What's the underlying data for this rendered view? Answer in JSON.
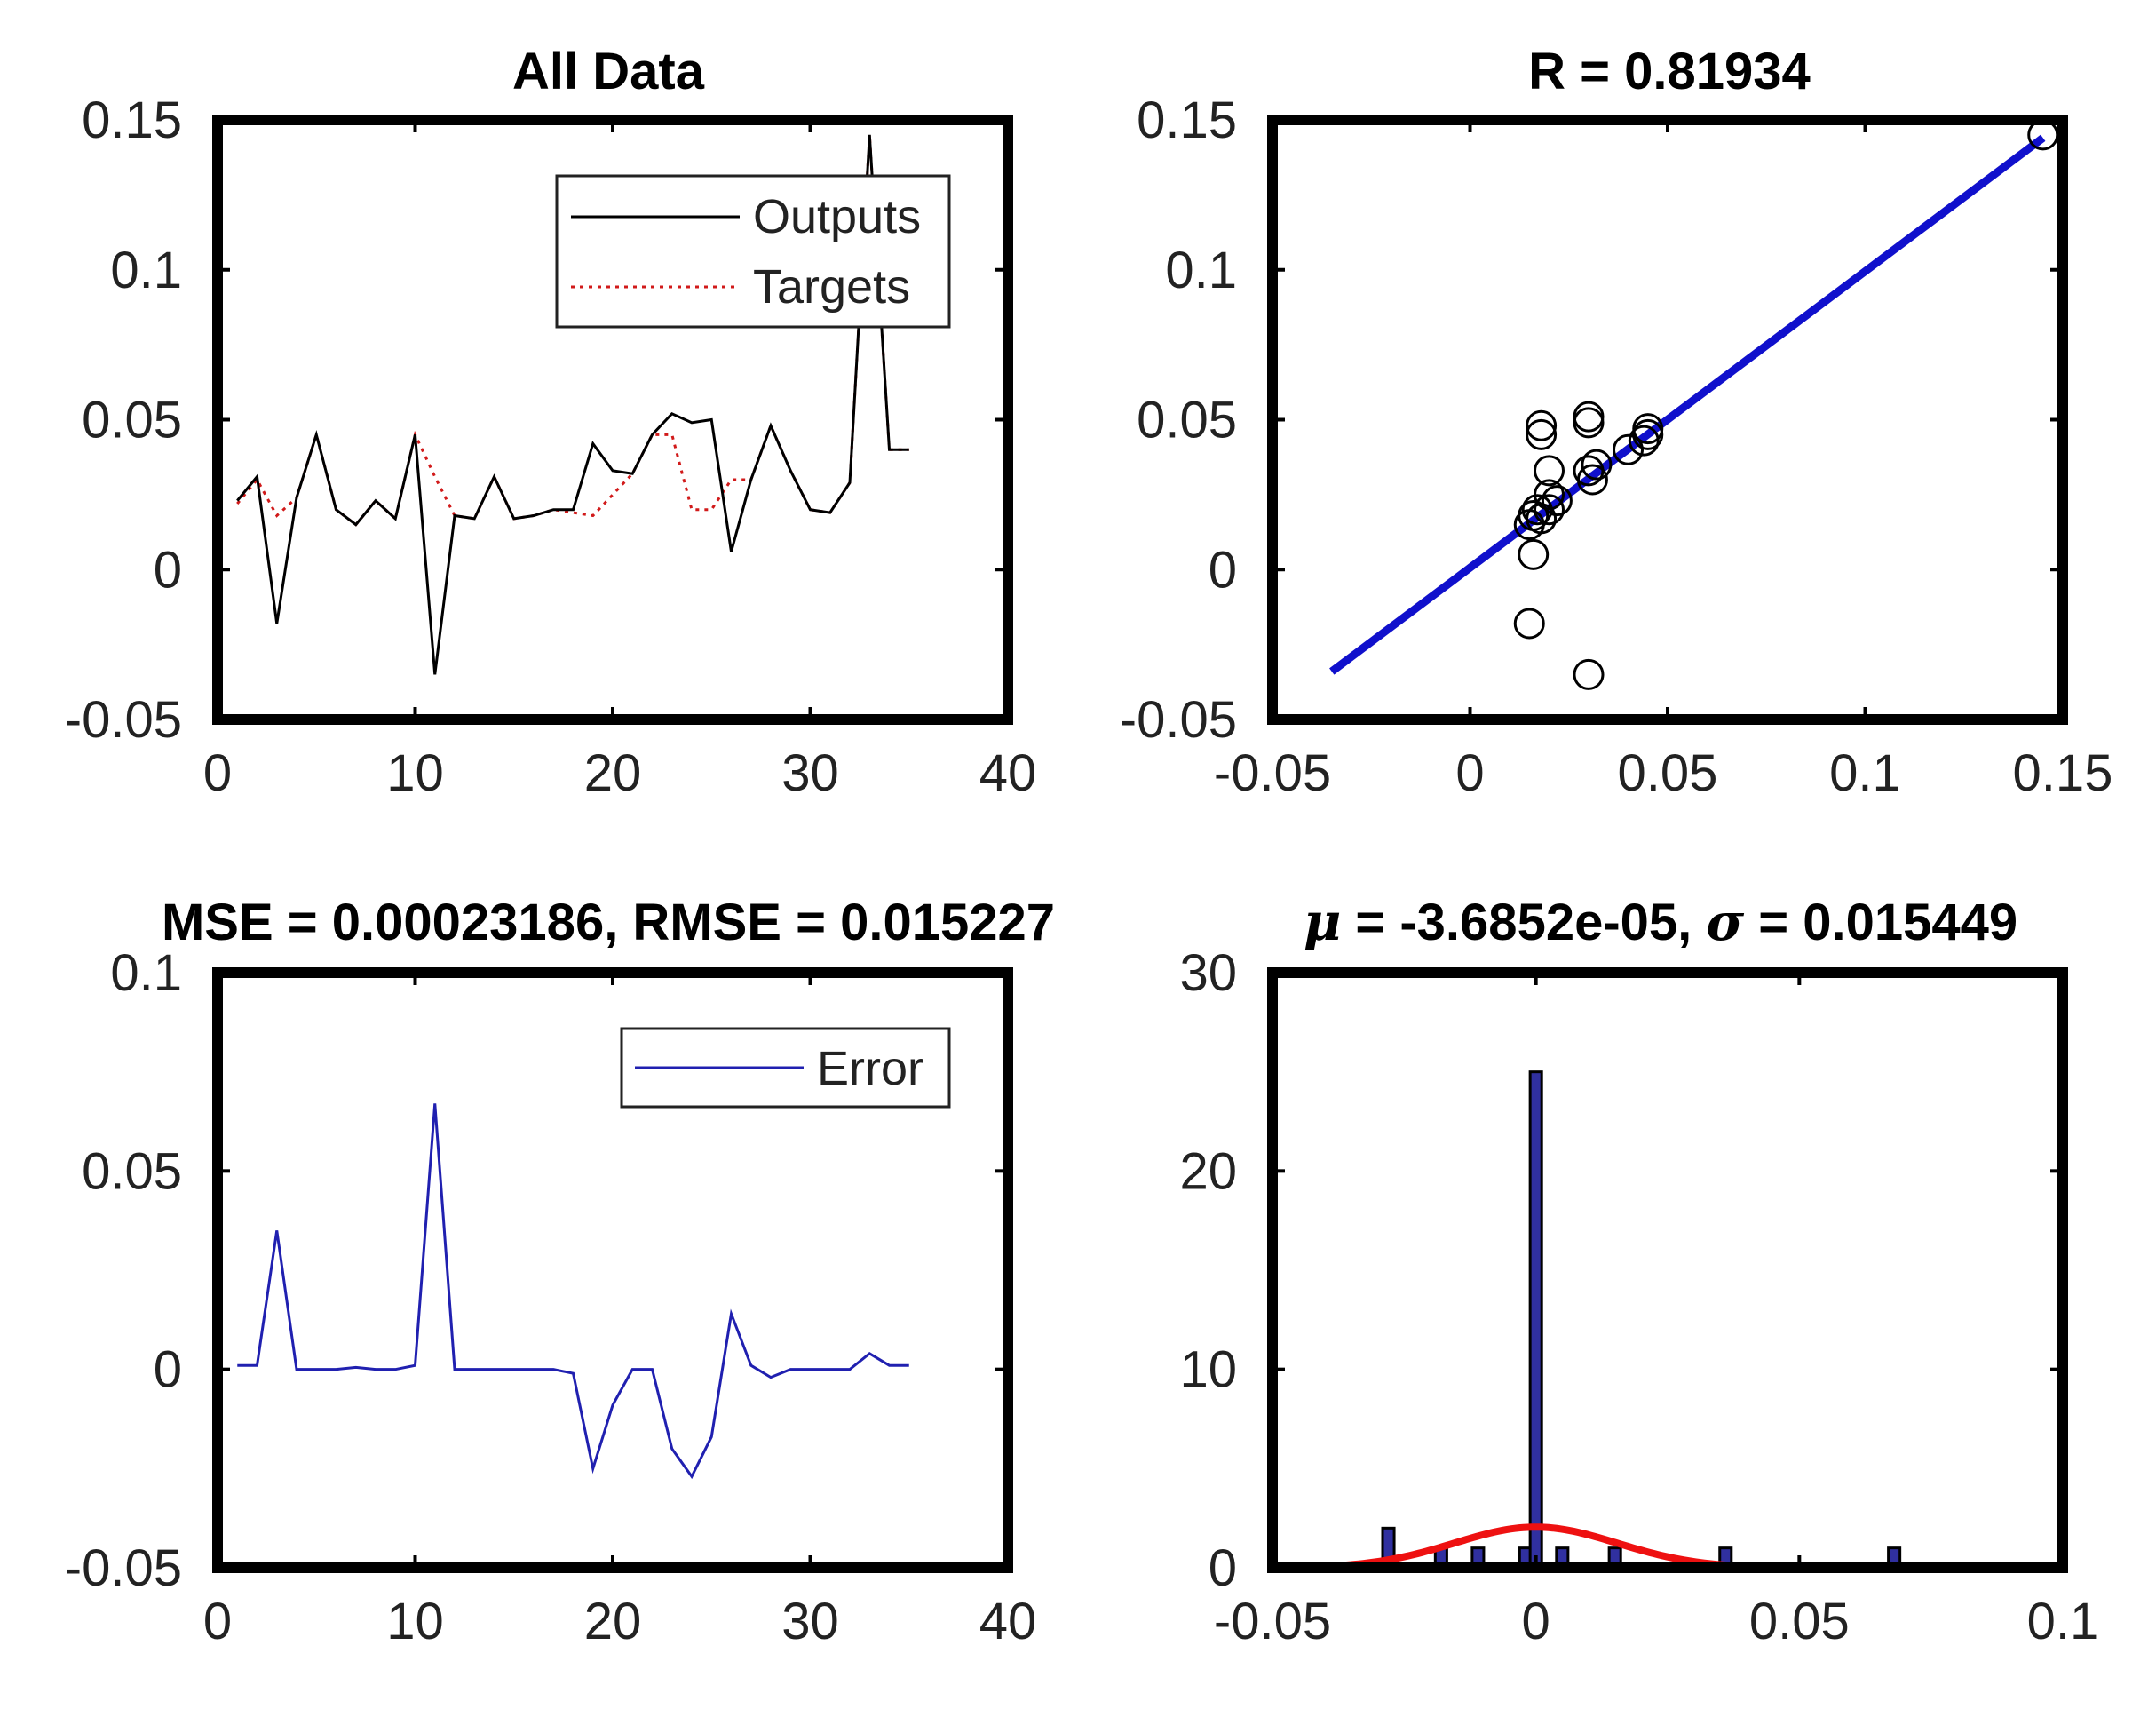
{
  "chart_data": [
    {
      "id": "all_data",
      "type": "line",
      "title": "All Data",
      "xlim": [
        0,
        40
      ],
      "ylim": [
        -0.05,
        0.15
      ],
      "xticks": [
        0,
        10,
        20,
        30,
        40
      ],
      "xtick_labels": [
        "0",
        "10",
        "20",
        "30",
        "40"
      ],
      "yticks": [
        -0.05,
        0,
        0.05,
        0.1,
        0.15
      ],
      "ytick_labels": [
        "-0.05",
        "0",
        "0.05",
        "0.1",
        "0.15"
      ],
      "legend": {
        "position": "top-right",
        "entries": [
          "Outputs",
          "Targets"
        ]
      },
      "series": [
        {
          "name": "Outputs",
          "color": "#000000",
          "style": "solid",
          "x": [
            1,
            2,
            3,
            4,
            5,
            6,
            7,
            8,
            9,
            10,
            11,
            12,
            13,
            14,
            15,
            16,
            17,
            18,
            19,
            20,
            21,
            22,
            23,
            24,
            25,
            26,
            27,
            28,
            29,
            30,
            31,
            32,
            33,
            34,
            35
          ],
          "y": [
            0.023,
            0.031,
            -0.018,
            0.024,
            0.045,
            0.02,
            0.015,
            0.023,
            0.017,
            0.045,
            -0.035,
            0.018,
            0.017,
            0.031,
            0.017,
            0.018,
            0.02,
            0.02,
            0.042,
            0.033,
            0.032,
            0.045,
            0.052,
            0.049,
            0.05,
            0.006,
            0.03,
            0.048,
            0.033,
            0.02,
            0.019,
            0.029,
            0.145,
            0.04,
            0.04
          ]
        },
        {
          "name": "Targets",
          "color": "#d11a1a",
          "style": "dotted",
          "x": [
            1,
            2,
            3,
            4,
            5,
            6,
            7,
            8,
            9,
            10,
            11,
            12,
            13,
            14,
            15,
            16,
            17,
            18,
            19,
            20,
            21,
            22,
            23,
            24,
            25,
            26,
            27,
            28,
            29,
            30,
            31,
            32,
            33,
            34,
            35
          ],
          "y": [
            0.022,
            0.03,
            0.018,
            0.024,
            0.045,
            0.02,
            0.015,
            0.023,
            0.017,
            0.045,
            0.031,
            0.018,
            0.017,
            0.031,
            0.017,
            0.018,
            0.02,
            0.019,
            0.018,
            0.025,
            0.032,
            0.045,
            0.045,
            0.02,
            0.02,
            0.03,
            0.03,
            0.048,
            0.033,
            0.02,
            0.019,
            0.029,
            0.145,
            0.04,
            0.04
          ]
        }
      ]
    },
    {
      "id": "regression",
      "type": "scatter",
      "title": "R = 0.81934",
      "xlim": [
        -0.05,
        0.15
      ],
      "ylim": [
        -0.05,
        0.15
      ],
      "xticks": [
        -0.05,
        0,
        0.05,
        0.1,
        0.15
      ],
      "xtick_labels": [
        "-0.05",
        "0",
        "0.05",
        "0.1",
        "0.15"
      ],
      "yticks": [
        -0.05,
        0,
        0.05,
        0.1,
        0.15
      ],
      "ytick_labels": [
        "-0.05",
        "0",
        "0.05",
        "0.1",
        "0.15"
      ],
      "points": {
        "x": [
          0.018,
          0.018,
          0.03,
          0.03,
          0.045,
          0.045,
          0.02,
          0.03,
          0.04,
          0.031,
          0.032,
          0.02,
          0.022,
          0.015,
          0.016,
          0.017,
          0.018,
          0.016,
          0.015,
          0.03,
          0.145,
          0.02,
          0.044
        ],
        "y": [
          0.048,
          0.045,
          0.051,
          0.049,
          0.047,
          0.045,
          0.033,
          0.033,
          0.04,
          0.03,
          0.035,
          0.025,
          0.023,
          0.015,
          0.018,
          0.02,
          0.017,
          0.005,
          -0.018,
          -0.035,
          0.145,
          0.02,
          0.043
        ]
      },
      "fit_line": {
        "x": [
          -0.035,
          0.145
        ],
        "y": [
          -0.034,
          0.144
        ],
        "color": "#1010cc"
      }
    },
    {
      "id": "error",
      "type": "line",
      "title": "MSE = 0.00023186, RMSE = 0.015227",
      "xlim": [
        0,
        40
      ],
      "ylim": [
        -0.05,
        0.1
      ],
      "xticks": [
        0,
        10,
        20,
        30,
        40
      ],
      "xtick_labels": [
        "0",
        "10",
        "20",
        "30",
        "40"
      ],
      "yticks": [
        -0.05,
        0,
        0.05,
        0.1
      ],
      "ytick_labels": [
        "-0.05",
        "0",
        "0.05",
        "0.1"
      ],
      "legend": {
        "position": "top-right",
        "entries": [
          "Error"
        ]
      },
      "series": [
        {
          "name": "Error",
          "color": "#2020b0",
          "style": "solid",
          "x": [
            1,
            2,
            3,
            4,
            5,
            6,
            7,
            8,
            9,
            10,
            11,
            12,
            13,
            14,
            15,
            16,
            17,
            18,
            19,
            20,
            21,
            22,
            23,
            24,
            25,
            26,
            27,
            28,
            29,
            30,
            31,
            32,
            33,
            34,
            35
          ],
          "y": [
            0.001,
            0.001,
            0.035,
            0,
            0,
            0,
            0.0005,
            0,
            0,
            0.001,
            0.067,
            0,
            0,
            0,
            0,
            0,
            0,
            -0.001,
            -0.025,
            -0.009,
            0,
            0,
            -0.02,
            -0.027,
            -0.017,
            0.014,
            0.001,
            -0.002,
            0,
            0,
            0,
            0,
            0.004,
            0.001,
            0.001
          ]
        }
      ]
    },
    {
      "id": "error_histogram",
      "type": "bar",
      "title_prefix_symbol": "μ",
      "title_mid": " = -3.6852e-05, ",
      "title_symbol2": "σ",
      "title_suffix": " = 0.015449",
      "xlim": [
        -0.05,
        0.1
      ],
      "ylim": [
        0,
        30
      ],
      "xticks": [
        -0.05,
        0,
        0.05,
        0.1
      ],
      "xtick_labels": [
        "-0.05",
        "0",
        "0.05",
        "0.1"
      ],
      "yticks": [
        0,
        10,
        20,
        30
      ],
      "ytick_labels": [
        "0",
        "10",
        "20",
        "30"
      ],
      "bars": {
        "x": [
          -0.028,
          -0.018,
          -0.011,
          -0.002,
          0.0,
          0.005,
          0.015,
          0.036,
          0.068
        ],
        "values": [
          2,
          1,
          1,
          1,
          25,
          1,
          1,
          1,
          1
        ],
        "width": 0.0022,
        "color": "#3030a0"
      },
      "normal_fit": {
        "mean": -3.69e-05,
        "sigma": 0.015449,
        "peak": 2.05,
        "x_range": [
          -0.048,
          0.048
        ],
        "color": "#ee1111"
      }
    }
  ]
}
